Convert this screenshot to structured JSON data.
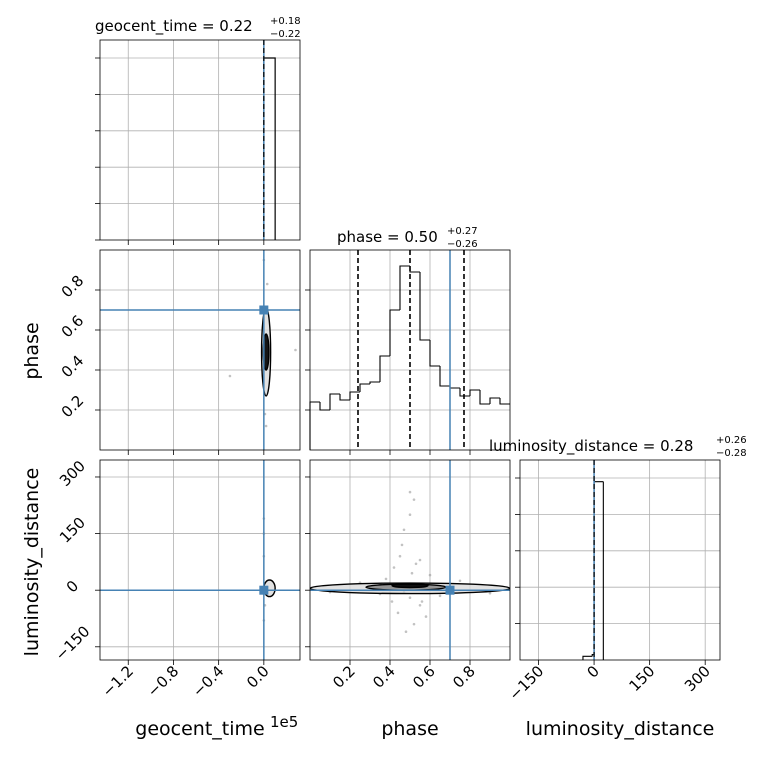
{
  "figure": {
    "multiplier_label": "1e5"
  },
  "chart_data": [
    {
      "type": "histogram",
      "panel": "geocent_time 1D marginal",
      "title": {
        "param": "geocent_time",
        "median": "0.22",
        "plus": "+0.18",
        "minus": "−0.22"
      },
      "xlim": [
        -1.45,
        0.32
      ],
      "bins": [
        {
          "x0": 0.0,
          "x1": 0.1,
          "density": 1.0
        }
      ],
      "quantile_lines": [
        0.0
      ],
      "truth": 0.0
    },
    {
      "type": "histogram",
      "panel": "phase 1D marginal",
      "title": {
        "param": "phase",
        "median": "0.50",
        "plus": "+0.27",
        "minus": "−0.26"
      },
      "xlim": [
        0.0,
        1.0
      ],
      "bin_edges": [
        0.0,
        0.05,
        0.1,
        0.15,
        0.2,
        0.25,
        0.3,
        0.35,
        0.4,
        0.45,
        0.5,
        0.55,
        0.6,
        0.65,
        0.7,
        0.75,
        0.8,
        0.85,
        0.9,
        0.95,
        1.0
      ],
      "densities": [
        0.24,
        0.2,
        0.28,
        0.25,
        0.29,
        0.33,
        0.34,
        0.47,
        0.7,
        0.92,
        0.89,
        0.55,
        0.42,
        0.32,
        0.31,
        0.27,
        0.3,
        0.23,
        0.26,
        0.23
      ],
      "quantile_lines": [
        0.24,
        0.5,
        0.77
      ],
      "truth": 0.7
    },
    {
      "type": "histogram",
      "panel": "luminosity_distance 1D marginal",
      "title": {
        "param": "luminosity_distance",
        "median": "0.28",
        "plus": "+0.26",
        "minus": "−0.28"
      },
      "xlim": [
        -200,
        340
      ],
      "bin_edges": [
        -30,
        -5,
        0,
        25
      ],
      "densities": [
        0.02,
        0.03,
        0.98
      ],
      "quantile_lines": [
        0.0
      ],
      "truth": 0.0
    },
    {
      "type": "scatter",
      "panel": "geocent_time vs phase 2D",
      "xlim": [
        -1.45,
        0.32
      ],
      "ylim": [
        0.0,
        1.0
      ],
      "truth": {
        "x": 0.0,
        "y": 0.7
      },
      "contours": [
        {
          "level": "outer",
          "x": 0.02,
          "y": 0.49,
          "rx": 0.04,
          "ry": 0.22
        },
        {
          "level": "inner",
          "x": 0.02,
          "y": 0.49,
          "rx": 0.025,
          "ry": 0.09
        }
      ],
      "points": [
        [
          -0.3,
          0.37
        ],
        [
          0.28,
          0.5
        ],
        [
          0.0,
          0.95
        ],
        [
          0.03,
          0.83
        ],
        [
          0.01,
          0.18
        ],
        [
          0.02,
          0.12
        ]
      ]
    },
    {
      "type": "scatter",
      "panel": "geocent_time vs luminosity_distance 2D",
      "xlim": [
        -1.45,
        0.32
      ],
      "ylim": [
        -185,
        345
      ],
      "truth": {
        "x": 0.0,
        "y": 0.0
      },
      "contours": [
        {
          "level": "outer",
          "x": 0.05,
          "y": 5,
          "rx": 0.05,
          "ry": 22
        }
      ],
      "points": [
        [
          0.0,
          190
        ],
        [
          0.0,
          150
        ],
        [
          0.0,
          90
        ],
        [
          0.01,
          -40
        ],
        [
          0.0,
          -80
        ]
      ]
    },
    {
      "type": "scatter",
      "panel": "phase vs luminosity_distance 2D",
      "xlim": [
        0.0,
        1.0
      ],
      "ylim": [
        -185,
        345
      ],
      "truth": {
        "x": 0.7,
        "y": 0.0
      },
      "contours": [
        {
          "level": "outer",
          "x": 0.5,
          "y": 5,
          "rx": 0.5,
          "ry": 14
        },
        {
          "level": "mid",
          "x": 0.48,
          "y": 8,
          "rx": 0.2,
          "ry": 8
        },
        {
          "level": "inner",
          "x": 0.5,
          "y": 12,
          "rx": 0.09,
          "ry": 5
        }
      ],
      "points": [
        [
          0.5,
          260
        ],
        [
          0.52,
          240
        ],
        [
          0.47,
          160
        ],
        [
          0.45,
          90
        ],
        [
          0.55,
          80
        ],
        [
          0.42,
          60
        ],
        [
          0.6,
          40
        ],
        [
          0.38,
          30
        ],
        [
          0.5,
          -20
        ],
        [
          0.55,
          -40
        ],
        [
          0.44,
          -60
        ],
        [
          0.52,
          -90
        ],
        [
          0.48,
          -110
        ],
        [
          0.56,
          -30
        ],
        [
          0.35,
          -10
        ],
        [
          0.65,
          -15
        ],
        [
          0.1,
          -5
        ],
        [
          0.9,
          -8
        ],
        [
          0.25,
          20
        ],
        [
          0.75,
          25
        ],
        [
          0.46,
          120
        ],
        [
          0.5,
          200
        ],
        [
          0.53,
          70
        ],
        [
          0.41,
          -30
        ],
        [
          0.58,
          -70
        ],
        [
          0.47,
          -5
        ],
        [
          0.62,
          10
        ],
        [
          0.3,
          5
        ],
        [
          0.7,
          -5
        ],
        [
          0.51,
          45
        ]
      ]
    }
  ],
  "axes": {
    "x_labels": [
      "geocent_time",
      "phase",
      "luminosity_distance"
    ],
    "y_labels": [
      "phase",
      "luminosity_distance"
    ],
    "geocent_time_ticks": [
      "−1.2",
      "−0.8",
      "−0.4",
      "0.0"
    ],
    "phase_ticks": [
      "0.2",
      "0.4",
      "0.6",
      "0.8"
    ],
    "distance_ticks": [
      "−150",
      "0",
      "150",
      "300"
    ]
  }
}
